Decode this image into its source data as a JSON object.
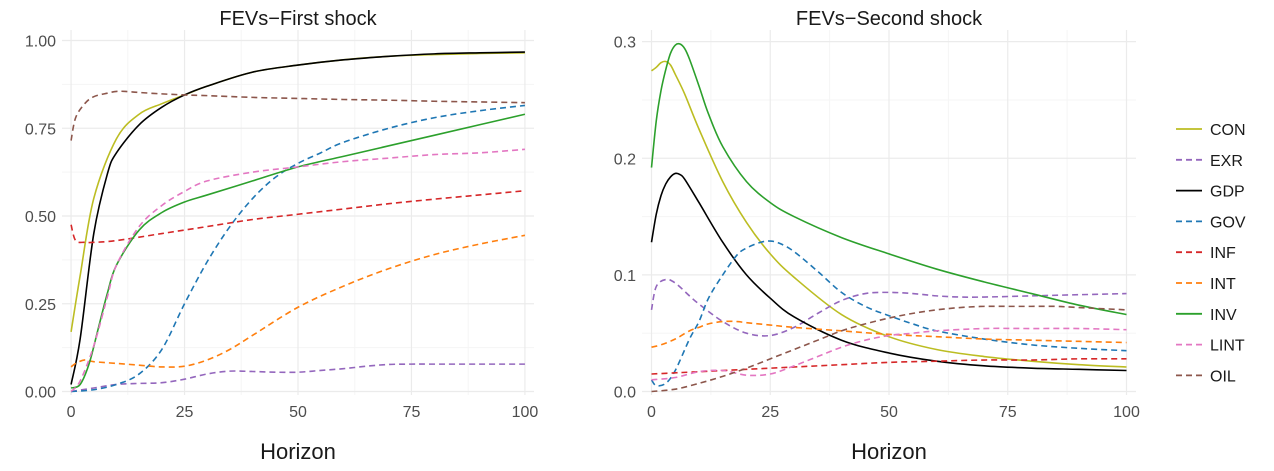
{
  "chart_data": [
    {
      "type": "line",
      "title": "FEVs−First shock",
      "xlabel": "Horizon",
      "ylabel": "",
      "xlim": [
        -2,
        102
      ],
      "ylim": [
        -0.01,
        1.03
      ],
      "xticks": [
        0,
        25,
        50,
        75,
        100
      ],
      "xtick_labels": [
        "0",
        "25",
        "50",
        "75",
        "100"
      ],
      "yticks": [
        0,
        0.25,
        0.5,
        0.75,
        1.0
      ],
      "ytick_labels": [
        "0.00",
        "0.25",
        "0.50",
        "0.75",
        "1.00"
      ],
      "grid": true,
      "series": [
        {
          "name": "CON",
          "x": [
            0,
            2,
            5,
            10,
            15,
            20,
            25,
            30,
            40,
            50,
            60,
            70,
            80,
            90,
            100
          ],
          "values": [
            0.17,
            0.33,
            0.55,
            0.72,
            0.79,
            0.82,
            0.845,
            0.87,
            0.91,
            0.93,
            0.945,
            0.955,
            0.96,
            0.963,
            0.965
          ]
        },
        {
          "name": "EXR",
          "x": [
            0,
            5,
            10,
            15,
            20,
            25,
            30,
            35,
            40,
            45,
            50,
            55,
            60,
            65,
            70,
            75,
            80,
            90,
            100
          ],
          "values": [
            0.0,
            0.01,
            0.02,
            0.023,
            0.025,
            0.035,
            0.05,
            0.058,
            0.057,
            0.055,
            0.055,
            0.06,
            0.065,
            0.072,
            0.077,
            0.078,
            0.078,
            0.078,
            0.078
          ]
        },
        {
          "name": "GDP",
          "x": [
            0,
            2,
            5,
            8,
            10,
            15,
            20,
            25,
            30,
            40,
            50,
            60,
            70,
            80,
            90,
            100
          ],
          "values": [
            0.02,
            0.15,
            0.45,
            0.62,
            0.68,
            0.76,
            0.81,
            0.845,
            0.87,
            0.91,
            0.93,
            0.945,
            0.955,
            0.962,
            0.965,
            0.967
          ]
        },
        {
          "name": "GOV",
          "x": [
            0,
            5,
            10,
            15,
            20,
            25,
            30,
            35,
            40,
            45,
            50,
            55,
            60,
            70,
            80,
            90,
            100
          ],
          "values": [
            0.0,
            0.005,
            0.02,
            0.05,
            0.12,
            0.25,
            0.37,
            0.47,
            0.55,
            0.61,
            0.65,
            0.68,
            0.71,
            0.75,
            0.78,
            0.8,
            0.815
          ]
        },
        {
          "name": "INF",
          "x": [
            0,
            1,
            3,
            5,
            10,
            20,
            30,
            40,
            50,
            60,
            70,
            80,
            90,
            100
          ],
          "values": [
            0.475,
            0.43,
            0.425,
            0.425,
            0.43,
            0.45,
            0.47,
            0.49,
            0.505,
            0.52,
            0.535,
            0.548,
            0.56,
            0.572
          ]
        },
        {
          "name": "INT",
          "x": [
            0,
            1,
            3,
            5,
            10,
            15,
            20,
            25,
            30,
            35,
            40,
            50,
            60,
            70,
            80,
            90,
            100
          ],
          "values": [
            0.07,
            0.08,
            0.09,
            0.085,
            0.08,
            0.075,
            0.07,
            0.072,
            0.09,
            0.12,
            0.16,
            0.24,
            0.3,
            0.35,
            0.39,
            0.42,
            0.445
          ]
        },
        {
          "name": "INV",
          "x": [
            0,
            2,
            4,
            6,
            8,
            10,
            15,
            20,
            25,
            30,
            40,
            50,
            60,
            70,
            80,
            90,
            100
          ],
          "values": [
            0.01,
            0.02,
            0.08,
            0.18,
            0.28,
            0.36,
            0.46,
            0.51,
            0.54,
            0.56,
            0.6,
            0.64,
            0.67,
            0.7,
            0.73,
            0.76,
            0.79
          ]
        },
        {
          "name": "LINT",
          "x": [
            0,
            2,
            5,
            8,
            10,
            15,
            20,
            25,
            30,
            40,
            50,
            60,
            70,
            80,
            90,
            100
          ],
          "values": [
            0.0,
            0.03,
            0.13,
            0.27,
            0.36,
            0.47,
            0.53,
            0.57,
            0.6,
            0.625,
            0.64,
            0.655,
            0.665,
            0.675,
            0.68,
            0.69
          ]
        },
        {
          "name": "OIL",
          "x": [
            0,
            1,
            3,
            5,
            8,
            10,
            12,
            15,
            20,
            25,
            30,
            40,
            50,
            60,
            70,
            80,
            90,
            100
          ],
          "values": [
            0.715,
            0.78,
            0.82,
            0.84,
            0.85,
            0.855,
            0.855,
            0.852,
            0.848,
            0.845,
            0.843,
            0.838,
            0.835,
            0.832,
            0.83,
            0.827,
            0.825,
            0.823
          ]
        }
      ]
    },
    {
      "type": "line",
      "title": "FEVs−Second shock",
      "xlabel": "Horizon",
      "ylabel": "",
      "xlim": [
        -2,
        102
      ],
      "ylim": [
        -0.003,
        0.31
      ],
      "xticks": [
        0,
        25,
        50,
        75,
        100
      ],
      "xtick_labels": [
        "0",
        "25",
        "50",
        "75",
        "100"
      ],
      "yticks": [
        0,
        0.1,
        0.2,
        0.3
      ],
      "ytick_labels": [
        "0.0",
        "0.1",
        "0.2",
        "0.3"
      ],
      "grid": true,
      "series": [
        {
          "name": "CON",
          "x": [
            0,
            1,
            2,
            3,
            4,
            5,
            7,
            10,
            15,
            20,
            25,
            30,
            40,
            50,
            60,
            70,
            80,
            90,
            100
          ],
          "values": [
            0.275,
            0.278,
            0.282,
            0.283,
            0.28,
            0.272,
            0.255,
            0.225,
            0.18,
            0.145,
            0.118,
            0.098,
            0.066,
            0.047,
            0.036,
            0.03,
            0.026,
            0.023,
            0.021
          ]
        },
        {
          "name": "EXR",
          "x": [
            0,
            1,
            3,
            5,
            8,
            10,
            15,
            20,
            25,
            30,
            35,
            40,
            45,
            50,
            55,
            60,
            65,
            70,
            80,
            90,
            100
          ],
          "values": [
            0.07,
            0.09,
            0.096,
            0.093,
            0.082,
            0.075,
            0.06,
            0.05,
            0.048,
            0.055,
            0.067,
            0.078,
            0.084,
            0.085,
            0.084,
            0.082,
            0.081,
            0.081,
            0.082,
            0.083,
            0.084
          ]
        },
        {
          "name": "GDP",
          "x": [
            0,
            1,
            2,
            3,
            4,
            5,
            6,
            7,
            10,
            15,
            20,
            25,
            30,
            40,
            50,
            60,
            70,
            80,
            90,
            100
          ],
          "values": [
            0.128,
            0.152,
            0.168,
            0.178,
            0.184,
            0.187,
            0.186,
            0.182,
            0.162,
            0.128,
            0.1,
            0.08,
            0.064,
            0.044,
            0.033,
            0.026,
            0.022,
            0.02,
            0.019,
            0.018
          ]
        },
        {
          "name": "GOV",
          "x": [
            0,
            1,
            3,
            5,
            8,
            10,
            12,
            15,
            18,
            20,
            23,
            25,
            27,
            30,
            35,
            40,
            45,
            50,
            55,
            60,
            70,
            80,
            90,
            100
          ],
          "values": [
            0.01,
            0.005,
            0.007,
            0.018,
            0.045,
            0.06,
            0.08,
            0.1,
            0.117,
            0.123,
            0.128,
            0.129,
            0.127,
            0.12,
            0.103,
            0.085,
            0.073,
            0.065,
            0.058,
            0.052,
            0.045,
            0.04,
            0.037,
            0.035
          ]
        },
        {
          "name": "INF",
          "x": [
            0,
            5,
            10,
            20,
            30,
            40,
            50,
            60,
            70,
            80,
            90,
            100
          ],
          "values": [
            0.015,
            0.016,
            0.017,
            0.019,
            0.021,
            0.023,
            0.025,
            0.026,
            0.027,
            0.027,
            0.028,
            0.028
          ]
        },
        {
          "name": "INT",
          "x": [
            0,
            2,
            5,
            8,
            10,
            12,
            15,
            18,
            20,
            25,
            30,
            40,
            50,
            60,
            70,
            80,
            90,
            100
          ],
          "values": [
            0.038,
            0.04,
            0.045,
            0.052,
            0.055,
            0.058,
            0.06,
            0.06,
            0.059,
            0.057,
            0.055,
            0.052,
            0.049,
            0.047,
            0.045,
            0.044,
            0.043,
            0.042
          ]
        },
        {
          "name": "INV",
          "x": [
            0,
            1,
            2,
            3,
            4,
            5,
            6,
            7,
            8,
            10,
            12,
            15,
            20,
            25,
            30,
            40,
            50,
            60,
            70,
            80,
            90,
            100
          ],
          "values": [
            0.192,
            0.232,
            0.258,
            0.276,
            0.29,
            0.297,
            0.298,
            0.294,
            0.285,
            0.262,
            0.238,
            0.21,
            0.18,
            0.162,
            0.15,
            0.132,
            0.118,
            0.105,
            0.094,
            0.084,
            0.074,
            0.066
          ]
        },
        {
          "name": "LINT",
          "x": [
            0,
            5,
            10,
            15,
            20,
            25,
            30,
            35,
            40,
            45,
            50,
            55,
            60,
            70,
            80,
            90,
            100
          ],
          "values": [
            0.01,
            0.012,
            0.017,
            0.018,
            0.014,
            0.015,
            0.022,
            0.03,
            0.038,
            0.044,
            0.048,
            0.05,
            0.052,
            0.054,
            0.054,
            0.054,
            0.053
          ]
        },
        {
          "name": "OIL",
          "x": [
            0,
            5,
            10,
            15,
            20,
            25,
            30,
            35,
            40,
            45,
            50,
            55,
            60,
            65,
            70,
            75,
            80,
            85,
            90,
            100
          ],
          "values": [
            0.0,
            0.002,
            0.007,
            0.013,
            0.02,
            0.028,
            0.036,
            0.044,
            0.052,
            0.058,
            0.063,
            0.067,
            0.07,
            0.072,
            0.073,
            0.073,
            0.073,
            0.073,
            0.072,
            0.07
          ]
        }
      ]
    }
  ],
  "legend": {
    "placement": "right",
    "items": [
      {
        "name": "CON",
        "color": "#bcbd22",
        "dash": "solid"
      },
      {
        "name": "EXR",
        "color": "#9467bd",
        "dash": "dashed"
      },
      {
        "name": "GDP",
        "color": "#000000",
        "dash": "solid"
      },
      {
        "name": "GOV",
        "color": "#1f77b4",
        "dash": "dashed"
      },
      {
        "name": "INF",
        "color": "#d62728",
        "dash": "dashed"
      },
      {
        "name": "INT",
        "color": "#ff7f0e",
        "dash": "dashed"
      },
      {
        "name": "INV",
        "color": "#2ca02c",
        "dash": "solid"
      },
      {
        "name": "LINT",
        "color": "#e377c2",
        "dash": "dashed"
      },
      {
        "name": "OIL",
        "color": "#8c564b",
        "dash": "dashed"
      }
    ]
  },
  "colors": {
    "panel_background": "#ffffff",
    "grid_major": "#ebebeb",
    "grid_minor": "#f5f5f5"
  }
}
